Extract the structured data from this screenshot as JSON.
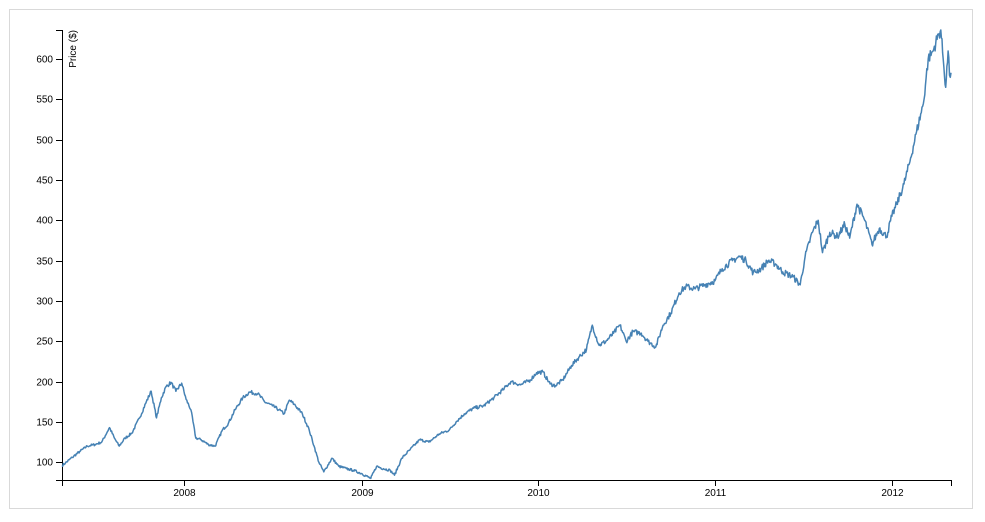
{
  "chart_data": {
    "type": "line",
    "title": "",
    "xlabel": "",
    "ylabel": "Price ($)",
    "xlim": [
      "2007-04-24",
      "2012-05-01"
    ],
    "ylim": [
      78,
      636
    ],
    "grid": false,
    "line_color": "#4682b4",
    "x_ticks": [
      "2008",
      "2009",
      "2010",
      "2011",
      "2012"
    ],
    "y_ticks": [
      100,
      150,
      200,
      250,
      300,
      350,
      400,
      450,
      500,
      550,
      600
    ],
    "series": [
      {
        "points": [
          [
            "2007-04-24",
            96
          ],
          [
            "2007-05-01",
            99
          ],
          [
            "2007-05-15",
            106
          ],
          [
            "2007-06-01",
            114
          ],
          [
            "2007-06-15",
            120
          ],
          [
            "2007-07-01",
            122
          ],
          [
            "2007-07-15",
            125
          ],
          [
            "2007-07-31",
            143
          ],
          [
            "2007-08-10",
            130
          ],
          [
            "2007-08-20",
            120
          ],
          [
            "2007-09-01",
            130
          ],
          [
            "2007-09-15",
            136
          ],
          [
            "2007-10-01",
            155
          ],
          [
            "2007-10-15",
            175
          ],
          [
            "2007-10-25",
            188
          ],
          [
            "2007-11-05",
            155
          ],
          [
            "2007-11-15",
            180
          ],
          [
            "2007-11-25",
            194
          ],
          [
            "2007-12-05",
            199
          ],
          [
            "2007-12-15",
            188
          ],
          [
            "2007-12-27",
            198
          ],
          [
            "2008-01-05",
            178
          ],
          [
            "2008-01-15",
            165
          ],
          [
            "2008-01-25",
            130
          ],
          [
            "2008-02-05",
            128
          ],
          [
            "2008-02-20",
            122
          ],
          [
            "2008-03-05",
            120
          ],
          [
            "2008-03-20",
            140
          ],
          [
            "2008-04-01",
            148
          ],
          [
            "2008-04-15",
            165
          ],
          [
            "2008-05-01",
            180
          ],
          [
            "2008-05-15",
            187
          ],
          [
            "2008-06-01",
            185
          ],
          [
            "2008-06-15",
            175
          ],
          [
            "2008-07-01",
            170
          ],
          [
            "2008-07-15",
            165
          ],
          [
            "2008-07-25",
            160
          ],
          [
            "2008-08-05",
            177
          ],
          [
            "2008-08-15",
            172
          ],
          [
            "2008-09-01",
            160
          ],
          [
            "2008-09-15",
            140
          ],
          [
            "2008-09-25",
            120
          ],
          [
            "2008-10-05",
            100
          ],
          [
            "2008-10-15",
            88
          ],
          [
            "2008-11-01",
            105
          ],
          [
            "2008-11-15",
            95
          ],
          [
            "2008-12-01",
            92
          ],
          [
            "2008-12-15",
            90
          ],
          [
            "2009-01-01",
            86
          ],
          [
            "2009-01-20",
            80
          ],
          [
            "2009-02-01",
            95
          ],
          [
            "2009-02-15",
            92
          ],
          [
            "2009-03-01",
            90
          ],
          [
            "2009-03-10",
            84
          ],
          [
            "2009-03-25",
            105
          ],
          [
            "2009-04-10",
            115
          ],
          [
            "2009-05-01",
            128
          ],
          [
            "2009-05-20",
            125
          ],
          [
            "2009-06-10",
            135
          ],
          [
            "2009-07-01",
            140
          ],
          [
            "2009-07-15",
            150
          ],
          [
            "2009-08-01",
            160
          ],
          [
            "2009-08-20",
            167
          ],
          [
            "2009-09-10",
            170
          ],
          [
            "2009-10-01",
            180
          ],
          [
            "2009-10-20",
            190
          ],
          [
            "2009-11-05",
            200
          ],
          [
            "2009-11-25",
            196
          ],
          [
            "2009-12-15",
            202
          ],
          [
            "2009-12-28",
            211
          ],
          [
            "2010-01-10",
            212
          ],
          [
            "2010-01-25",
            197
          ],
          [
            "2010-02-05",
            195
          ],
          [
            "2010-02-20",
            202
          ],
          [
            "2010-03-10",
            220
          ],
          [
            "2010-03-25",
            230
          ],
          [
            "2010-04-10",
            240
          ],
          [
            "2010-04-22",
            270
          ],
          [
            "2010-05-06",
            245
          ],
          [
            "2010-05-20",
            250
          ],
          [
            "2010-06-05",
            260
          ],
          [
            "2010-06-18",
            270
          ],
          [
            "2010-07-01",
            250
          ],
          [
            "2010-07-15",
            262
          ],
          [
            "2010-08-01",
            260
          ],
          [
            "2010-08-15",
            250
          ],
          [
            "2010-08-31",
            243
          ],
          [
            "2010-09-15",
            270
          ],
          [
            "2010-10-01",
            285
          ],
          [
            "2010-10-18",
            310
          ],
          [
            "2010-11-01",
            318
          ],
          [
            "2010-11-20",
            315
          ],
          [
            "2010-12-10",
            320
          ],
          [
            "2010-12-31",
            325
          ],
          [
            "2011-01-15",
            340
          ],
          [
            "2011-02-05",
            350
          ],
          [
            "2011-02-20",
            355
          ],
          [
            "2011-03-05",
            350
          ],
          [
            "2011-03-20",
            335
          ],
          [
            "2011-04-05",
            340
          ],
          [
            "2011-04-20",
            350
          ],
          [
            "2011-05-05",
            346
          ],
          [
            "2011-05-20",
            336
          ],
          [
            "2011-06-10",
            330
          ],
          [
            "2011-06-25",
            320
          ],
          [
            "2011-07-05",
            355
          ],
          [
            "2011-07-20",
            385
          ],
          [
            "2011-08-01",
            400
          ],
          [
            "2011-08-10",
            360
          ],
          [
            "2011-08-25",
            385
          ],
          [
            "2011-09-10",
            380
          ],
          [
            "2011-09-25",
            395
          ],
          [
            "2011-10-05",
            378
          ],
          [
            "2011-10-20",
            420
          ],
          [
            "2011-11-05",
            400
          ],
          [
            "2011-11-20",
            370
          ],
          [
            "2011-12-05",
            390
          ],
          [
            "2011-12-20",
            380
          ],
          [
            "2011-12-31",
            405
          ],
          [
            "2012-01-10",
            420
          ],
          [
            "2012-01-25",
            445
          ],
          [
            "2012-02-05",
            470
          ],
          [
            "2012-02-20",
            510
          ],
          [
            "2012-03-05",
            545
          ],
          [
            "2012-03-15",
            600
          ],
          [
            "2012-03-25",
            610
          ],
          [
            "2012-04-05",
            630
          ],
          [
            "2012-04-10",
            636
          ],
          [
            "2012-04-15",
            600
          ],
          [
            "2012-04-20",
            565
          ],
          [
            "2012-04-25",
            610
          ],
          [
            "2012-04-28",
            580
          ],
          [
            "2012-05-01",
            583
          ]
        ]
      }
    ]
  }
}
